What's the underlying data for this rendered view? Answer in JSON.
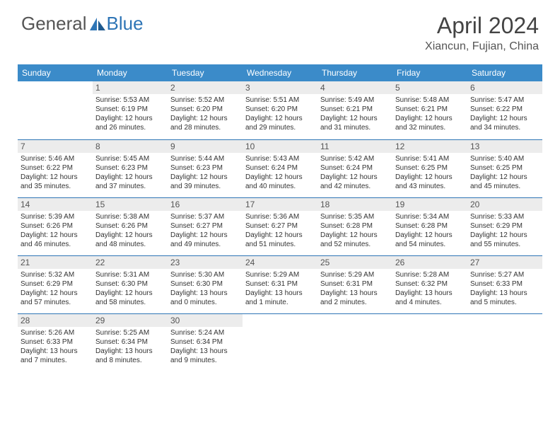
{
  "logo": {
    "general": "General",
    "blue": "Blue"
  },
  "title": "April 2024",
  "location": "Xiancun, Fujian, China",
  "colors": {
    "header_bg": "#3b8bc9",
    "header_text": "#ffffff",
    "daynum_bg": "#ececec",
    "border": "#2e75b6",
    "logo_gray": "#555555",
    "logo_blue": "#2e75b6"
  },
  "weekdays": [
    "Sunday",
    "Monday",
    "Tuesday",
    "Wednesday",
    "Thursday",
    "Friday",
    "Saturday"
  ],
  "weeks": [
    [
      {
        "n": "",
        "sr": "",
        "ss": "",
        "dl": ""
      },
      {
        "n": "1",
        "sr": "Sunrise: 5:53 AM",
        "ss": "Sunset: 6:19 PM",
        "dl": "Daylight: 12 hours and 26 minutes."
      },
      {
        "n": "2",
        "sr": "Sunrise: 5:52 AM",
        "ss": "Sunset: 6:20 PM",
        "dl": "Daylight: 12 hours and 28 minutes."
      },
      {
        "n": "3",
        "sr": "Sunrise: 5:51 AM",
        "ss": "Sunset: 6:20 PM",
        "dl": "Daylight: 12 hours and 29 minutes."
      },
      {
        "n": "4",
        "sr": "Sunrise: 5:49 AM",
        "ss": "Sunset: 6:21 PM",
        "dl": "Daylight: 12 hours and 31 minutes."
      },
      {
        "n": "5",
        "sr": "Sunrise: 5:48 AM",
        "ss": "Sunset: 6:21 PM",
        "dl": "Daylight: 12 hours and 32 minutes."
      },
      {
        "n": "6",
        "sr": "Sunrise: 5:47 AM",
        "ss": "Sunset: 6:22 PM",
        "dl": "Daylight: 12 hours and 34 minutes."
      }
    ],
    [
      {
        "n": "7",
        "sr": "Sunrise: 5:46 AM",
        "ss": "Sunset: 6:22 PM",
        "dl": "Daylight: 12 hours and 35 minutes."
      },
      {
        "n": "8",
        "sr": "Sunrise: 5:45 AM",
        "ss": "Sunset: 6:23 PM",
        "dl": "Daylight: 12 hours and 37 minutes."
      },
      {
        "n": "9",
        "sr": "Sunrise: 5:44 AM",
        "ss": "Sunset: 6:23 PM",
        "dl": "Daylight: 12 hours and 39 minutes."
      },
      {
        "n": "10",
        "sr": "Sunrise: 5:43 AM",
        "ss": "Sunset: 6:24 PM",
        "dl": "Daylight: 12 hours and 40 minutes."
      },
      {
        "n": "11",
        "sr": "Sunrise: 5:42 AM",
        "ss": "Sunset: 6:24 PM",
        "dl": "Daylight: 12 hours and 42 minutes."
      },
      {
        "n": "12",
        "sr": "Sunrise: 5:41 AM",
        "ss": "Sunset: 6:25 PM",
        "dl": "Daylight: 12 hours and 43 minutes."
      },
      {
        "n": "13",
        "sr": "Sunrise: 5:40 AM",
        "ss": "Sunset: 6:25 PM",
        "dl": "Daylight: 12 hours and 45 minutes."
      }
    ],
    [
      {
        "n": "14",
        "sr": "Sunrise: 5:39 AM",
        "ss": "Sunset: 6:26 PM",
        "dl": "Daylight: 12 hours and 46 minutes."
      },
      {
        "n": "15",
        "sr": "Sunrise: 5:38 AM",
        "ss": "Sunset: 6:26 PM",
        "dl": "Daylight: 12 hours and 48 minutes."
      },
      {
        "n": "16",
        "sr": "Sunrise: 5:37 AM",
        "ss": "Sunset: 6:27 PM",
        "dl": "Daylight: 12 hours and 49 minutes."
      },
      {
        "n": "17",
        "sr": "Sunrise: 5:36 AM",
        "ss": "Sunset: 6:27 PM",
        "dl": "Daylight: 12 hours and 51 minutes."
      },
      {
        "n": "18",
        "sr": "Sunrise: 5:35 AM",
        "ss": "Sunset: 6:28 PM",
        "dl": "Daylight: 12 hours and 52 minutes."
      },
      {
        "n": "19",
        "sr": "Sunrise: 5:34 AM",
        "ss": "Sunset: 6:28 PM",
        "dl": "Daylight: 12 hours and 54 minutes."
      },
      {
        "n": "20",
        "sr": "Sunrise: 5:33 AM",
        "ss": "Sunset: 6:29 PM",
        "dl": "Daylight: 12 hours and 55 minutes."
      }
    ],
    [
      {
        "n": "21",
        "sr": "Sunrise: 5:32 AM",
        "ss": "Sunset: 6:29 PM",
        "dl": "Daylight: 12 hours and 57 minutes."
      },
      {
        "n": "22",
        "sr": "Sunrise: 5:31 AM",
        "ss": "Sunset: 6:30 PM",
        "dl": "Daylight: 12 hours and 58 minutes."
      },
      {
        "n": "23",
        "sr": "Sunrise: 5:30 AM",
        "ss": "Sunset: 6:30 PM",
        "dl": "Daylight: 13 hours and 0 minutes."
      },
      {
        "n": "24",
        "sr": "Sunrise: 5:29 AM",
        "ss": "Sunset: 6:31 PM",
        "dl": "Daylight: 13 hours and 1 minute."
      },
      {
        "n": "25",
        "sr": "Sunrise: 5:29 AM",
        "ss": "Sunset: 6:31 PM",
        "dl": "Daylight: 13 hours and 2 minutes."
      },
      {
        "n": "26",
        "sr": "Sunrise: 5:28 AM",
        "ss": "Sunset: 6:32 PM",
        "dl": "Daylight: 13 hours and 4 minutes."
      },
      {
        "n": "27",
        "sr": "Sunrise: 5:27 AM",
        "ss": "Sunset: 6:33 PM",
        "dl": "Daylight: 13 hours and 5 minutes."
      }
    ],
    [
      {
        "n": "28",
        "sr": "Sunrise: 5:26 AM",
        "ss": "Sunset: 6:33 PM",
        "dl": "Daylight: 13 hours and 7 minutes."
      },
      {
        "n": "29",
        "sr": "Sunrise: 5:25 AM",
        "ss": "Sunset: 6:34 PM",
        "dl": "Daylight: 13 hours and 8 minutes."
      },
      {
        "n": "30",
        "sr": "Sunrise: 5:24 AM",
        "ss": "Sunset: 6:34 PM",
        "dl": "Daylight: 13 hours and 9 minutes."
      },
      {
        "n": "",
        "sr": "",
        "ss": "",
        "dl": ""
      },
      {
        "n": "",
        "sr": "",
        "ss": "",
        "dl": ""
      },
      {
        "n": "",
        "sr": "",
        "ss": "",
        "dl": ""
      },
      {
        "n": "",
        "sr": "",
        "ss": "",
        "dl": ""
      }
    ]
  ]
}
